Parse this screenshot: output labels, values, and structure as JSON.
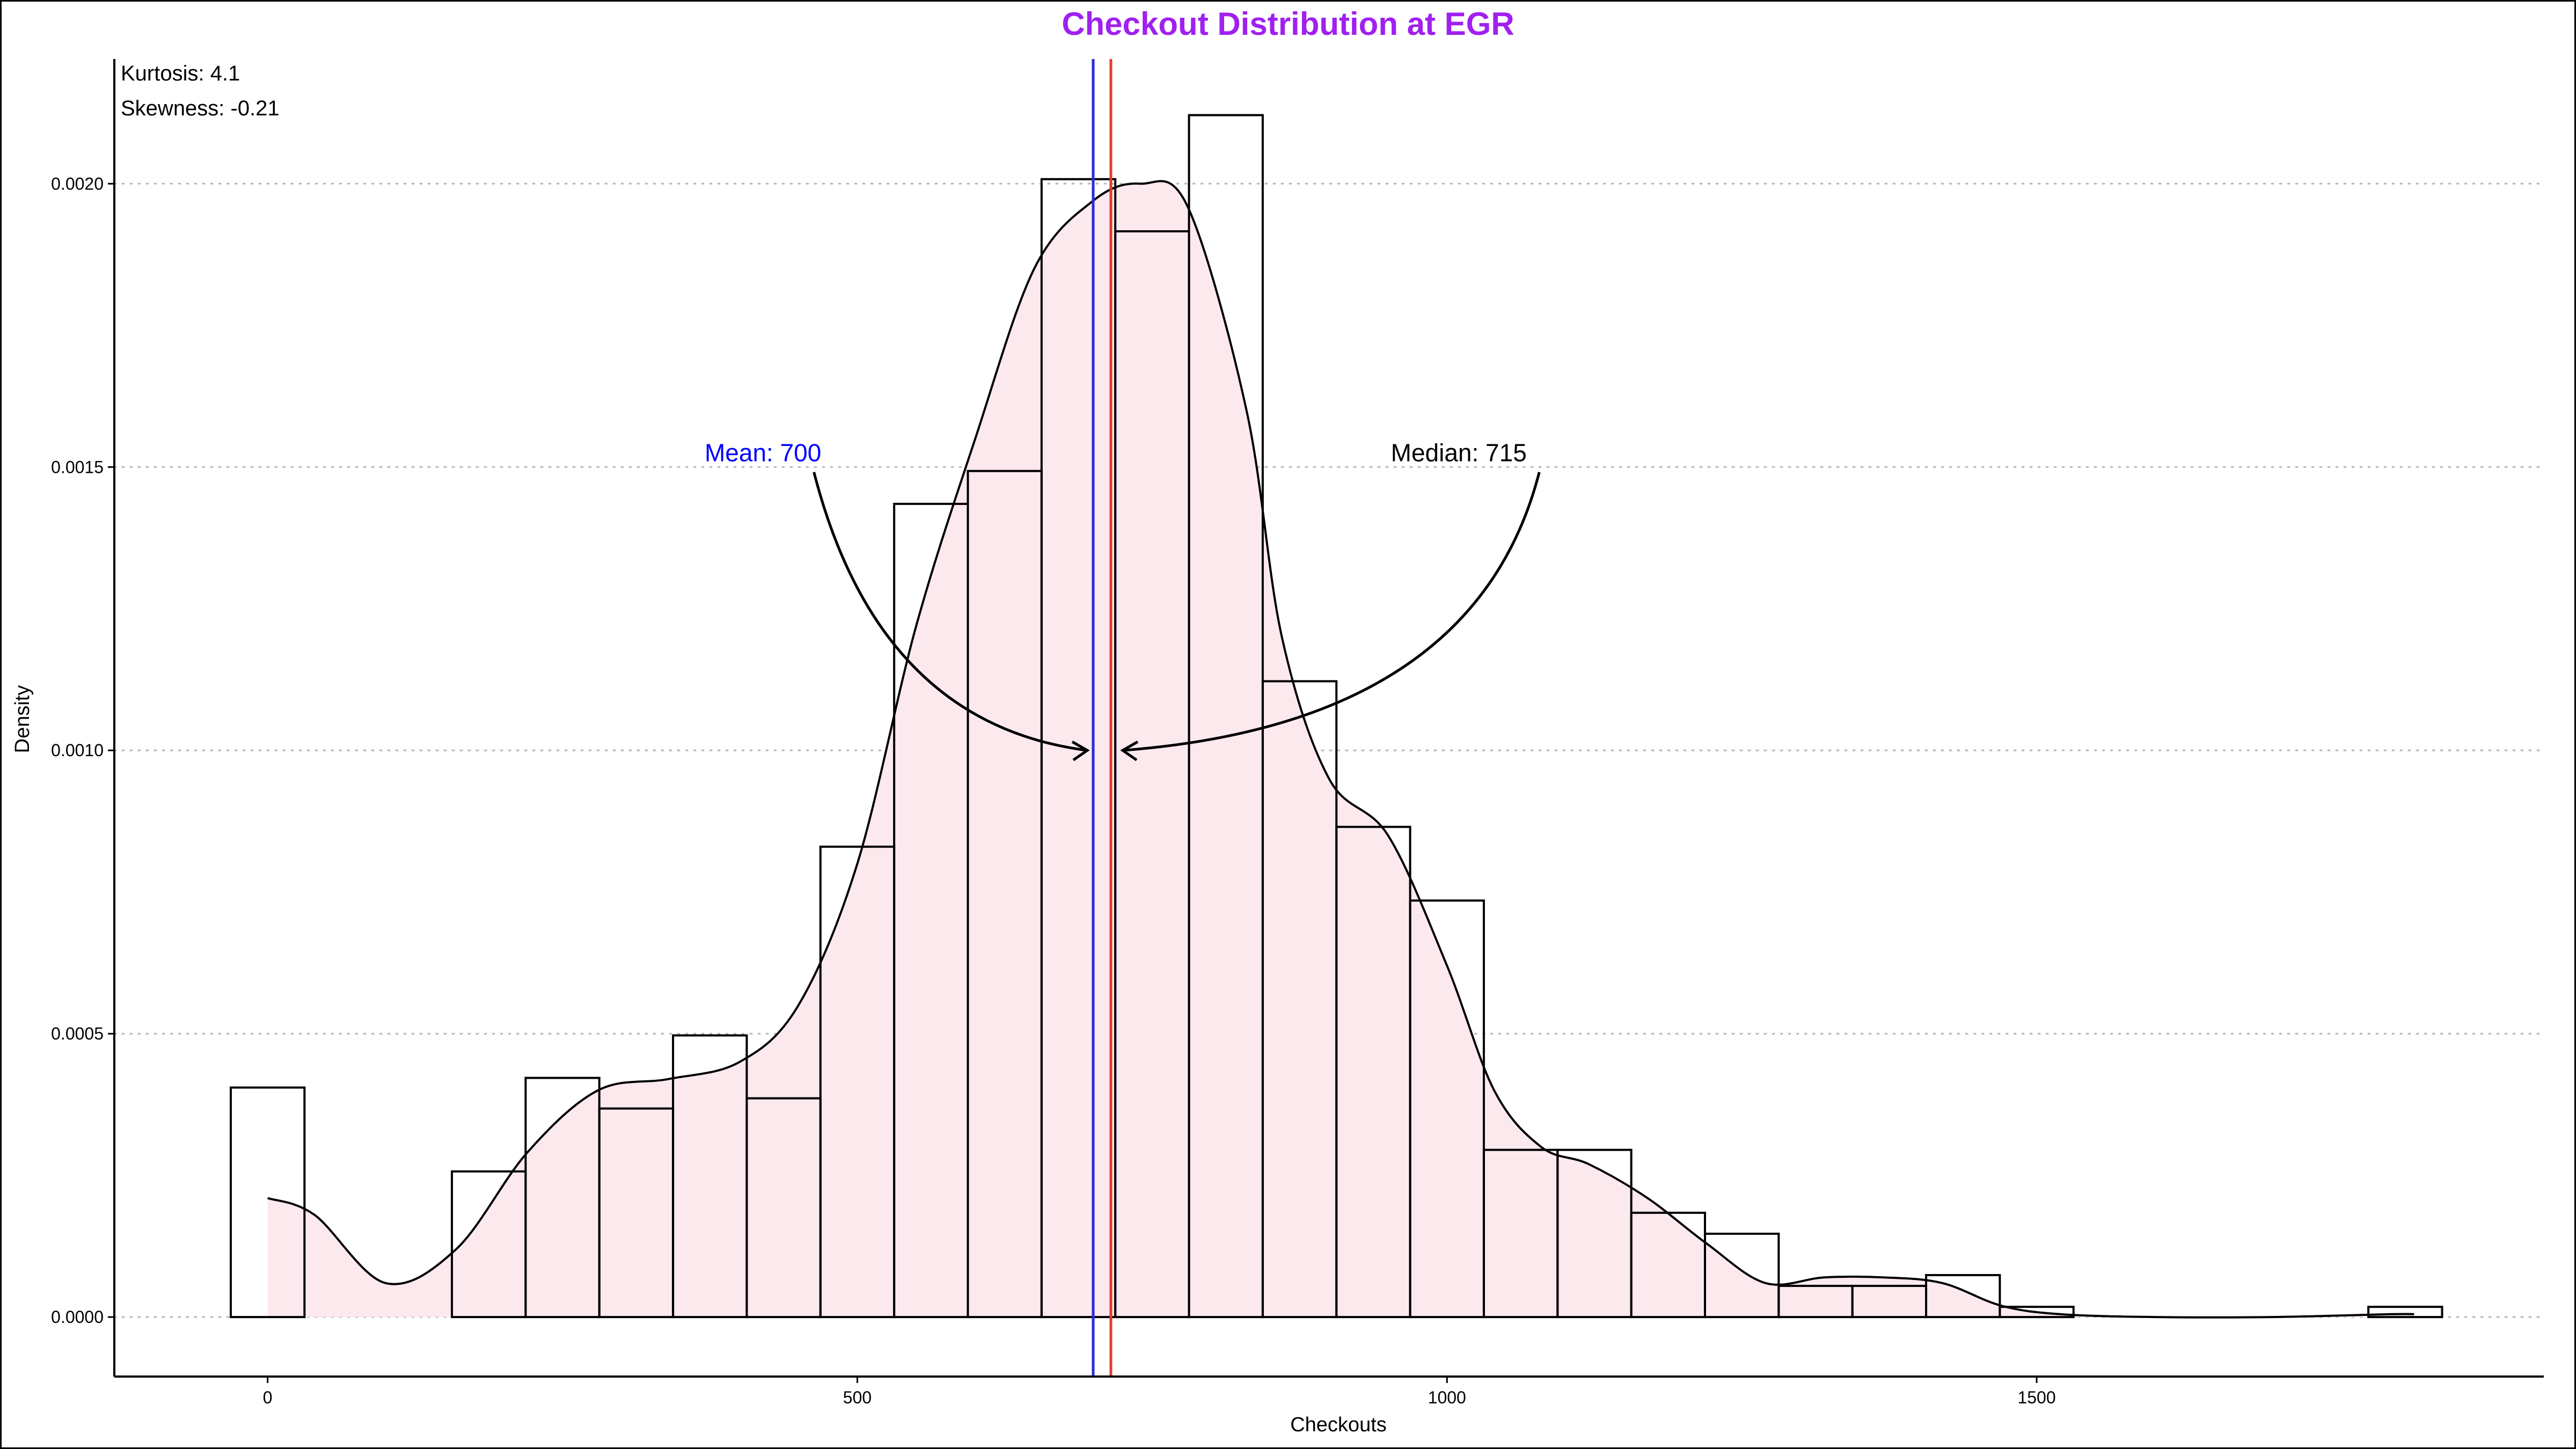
{
  "chart_data": {
    "type": "histogram",
    "title": "Checkout Distribution at EGR",
    "xlabel": "Checkouts",
    "ylabel": "Density",
    "xlim": [
      -130,
      1930
    ],
    "ylim": [
      -0.000105,
      0.00222
    ],
    "x_ticks": [
      0,
      500,
      1000,
      1500
    ],
    "x_tick_labels": [
      "0",
      "500",
      "1000",
      "1500"
    ],
    "y_ticks": [
      0,
      0.0005,
      0.001,
      0.0015,
      0.002
    ],
    "y_tick_labels": [
      "0.0000",
      "0.0005",
      "0.0010",
      "0.0015",
      "0.0020"
    ],
    "grid": "horizontal dotted",
    "bin_width": 62.5,
    "bins": [
      {
        "x_min": -31.25,
        "x_max": 31.25,
        "density": 0.000405
      },
      {
        "x_min": 31.25,
        "x_max": 93.75,
        "density": 0
      },
      {
        "x_min": 93.75,
        "x_max": 156.25,
        "density": 0
      },
      {
        "x_min": 156.25,
        "x_max": 218.75,
        "density": 0.000257
      },
      {
        "x_min": 218.75,
        "x_max": 281.25,
        "density": 0.000422
      },
      {
        "x_min": 281.25,
        "x_max": 343.75,
        "density": 0.000368
      },
      {
        "x_min": 343.75,
        "x_max": 406.25,
        "density": 0.000497
      },
      {
        "x_min": 406.25,
        "x_max": 468.75,
        "density": 0.000386
      },
      {
        "x_min": 468.75,
        "x_max": 531.25,
        "density": 0.00083
      },
      {
        "x_min": 531.25,
        "x_max": 593.75,
        "density": 0.001435
      },
      {
        "x_min": 593.75,
        "x_max": 656.25,
        "density": 0.001493
      },
      {
        "x_min": 656.25,
        "x_max": 718.75,
        "density": 0.002008
      },
      {
        "x_min": 718.75,
        "x_max": 781.25,
        "density": 0.001916
      },
      {
        "x_min": 781.25,
        "x_max": 843.75,
        "density": 0.002121
      },
      {
        "x_min": 843.75,
        "x_max": 906.25,
        "density": 0.001122
      },
      {
        "x_min": 906.25,
        "x_max": 968.75,
        "density": 0.000865
      },
      {
        "x_min": 968.75,
        "x_max": 1031.25,
        "density": 0.000735
      },
      {
        "x_min": 1031.25,
        "x_max": 1093.75,
        "density": 0.000295
      },
      {
        "x_min": 1093.75,
        "x_max": 1156.25,
        "density": 0.000295
      },
      {
        "x_min": 1156.25,
        "x_max": 1218.75,
        "density": 0.000184
      },
      {
        "x_min": 1218.75,
        "x_max": 1281.25,
        "density": 0.000147
      },
      {
        "x_min": 1281.25,
        "x_max": 1343.75,
        "density": 5.5e-05
      },
      {
        "x_min": 1343.75,
        "x_max": 1406.25,
        "density": 5.5e-05
      },
      {
        "x_min": 1406.25,
        "x_max": 1468.75,
        "density": 7.4e-05
      },
      {
        "x_min": 1468.75,
        "x_max": 1531.25,
        "density": 1.8e-05
      },
      {
        "x_min": 1531.25,
        "x_max": 1593.75,
        "density": 0
      },
      {
        "x_min": 1593.75,
        "x_max": 1656.25,
        "density": 0
      },
      {
        "x_min": 1656.25,
        "x_max": 1718.75,
        "density": 0
      },
      {
        "x_min": 1718.75,
        "x_max": 1781.25,
        "density": 0
      },
      {
        "x_min": 1781.25,
        "x_max": 1843.75,
        "density": 1.8e-05
      }
    ],
    "density_curve": {
      "x": [
        0,
        40,
        100,
        160,
        220,
        280,
        340,
        400,
        450,
        500,
        550,
        600,
        650,
        700,
        740,
        780,
        830,
        860,
        900,
        950,
        1000,
        1040,
        1080,
        1120,
        1170,
        1220,
        1270,
        1320,
        1370,
        1420,
        1470,
        1520,
        1600,
        1700,
        1800,
        1820
      ],
      "y": [
        0.00021,
        0.00018,
        6e-05,
        0.00012,
        0.00029,
        0.0004,
        0.00042,
        0.00045,
        0.00055,
        0.0008,
        0.00122,
        0.00155,
        0.00185,
        0.00197,
        0.002,
        0.00196,
        0.0016,
        0.0012,
        0.00095,
        0.00085,
        0.00062,
        0.0004,
        0.0003,
        0.00027,
        0.00021,
        0.00013,
        6e-05,
        7e-05,
        7e-05,
        6e-05,
        2e-05,
        5e-06,
        0,
        0,
        5e-06,
        5e-06
      ]
    },
    "fill_color": "#fce9ee",
    "vlines": [
      {
        "label": "mean",
        "x": 700,
        "color": "#2b2bd9"
      },
      {
        "label": "median",
        "x": 715,
        "color": "#e53a2e"
      }
    ],
    "annotations": [
      {
        "text": "Mean: 700",
        "x": 420,
        "y": 0.00151,
        "color": "#0000ff",
        "arrow_to": [
          695,
          0.001
        ]
      },
      {
        "text": "Median: 715",
        "x": 1010,
        "y": 0.00151,
        "color": "#000000",
        "arrow_to": [
          725,
          0.001
        ]
      }
    ],
    "stats": {
      "kurtosis": "Kurtosis: 4.1",
      "skewness": "Skewness: -0.21"
    },
    "title_color": "#a020f0"
  }
}
